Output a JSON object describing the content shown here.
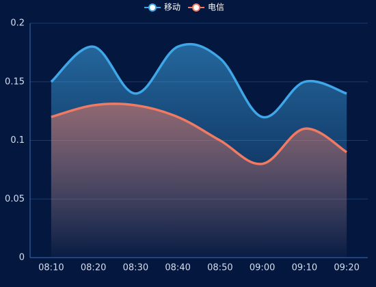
{
  "chart_data": {
    "type": "line",
    "smooth": true,
    "area": true,
    "grid": true,
    "legend": "top",
    "categories": [
      "08:10",
      "08:20",
      "08:30",
      "08:40",
      "08:50",
      "09:00",
      "09:10",
      "09:20"
    ],
    "series": [
      {
        "name": "移动",
        "color": "#3fa7e8",
        "values": [
          0.15,
          0.18,
          0.14,
          0.18,
          0.17,
          0.12,
          0.15,
          0.14
        ]
      },
      {
        "name": "电信",
        "color": "#f07a62",
        "values": [
          0.12,
          0.13,
          0.13,
          0.12,
          0.1,
          0.08,
          0.11,
          0.09
        ]
      }
    ],
    "ylim": [
      0,
      0.2
    ],
    "yticks": [
      0,
      0.05,
      0.1,
      0.15,
      0.2
    ]
  }
}
